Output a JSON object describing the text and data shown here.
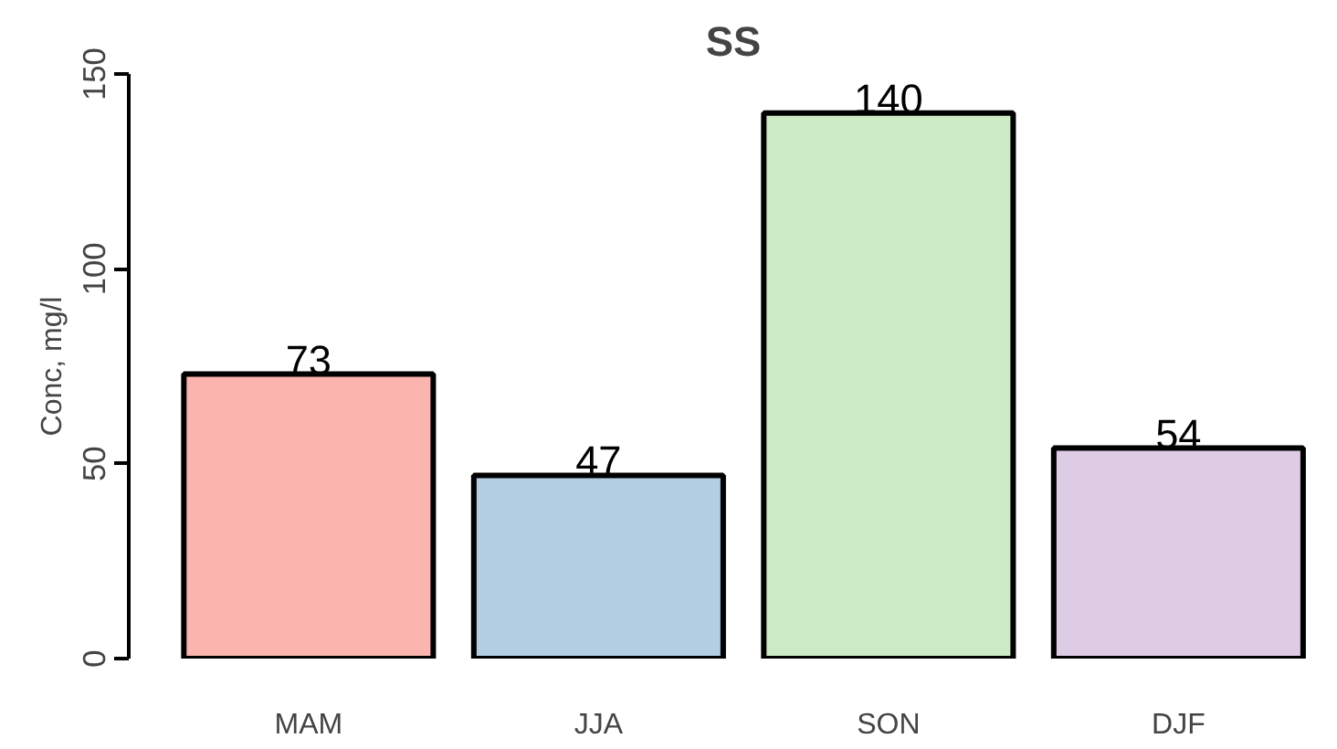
{
  "chart_data": {
    "type": "bar",
    "title": "SS",
    "ylabel": "Conc, mg/l",
    "categories": [
      "MAM",
      "JJA",
      "SON",
      "DJF"
    ],
    "values": [
      73,
      47,
      140,
      54
    ],
    "colors": [
      "#fbb4ae",
      "#b3cde3",
      "#ccebc5",
      "#decbe4"
    ],
    "ylim": [
      0,
      150
    ],
    "yticks": [
      0,
      50,
      100,
      150
    ],
    "grid": false,
    "data_labels": true
  }
}
